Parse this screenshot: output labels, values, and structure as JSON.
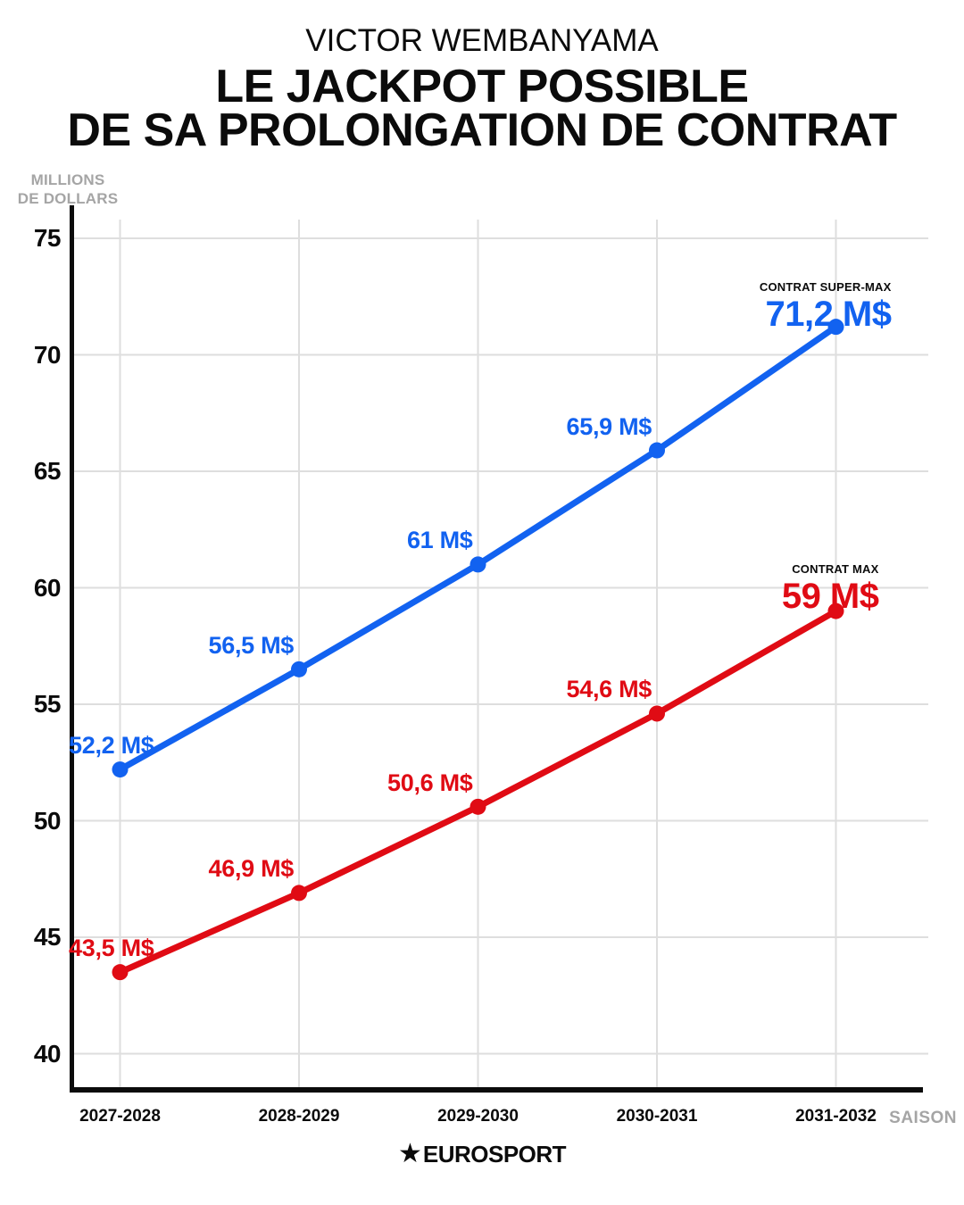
{
  "header": {
    "supertitle": "VICTOR WEMBANYAMA",
    "title_line1": "LE JACKPOT POSSIBLE",
    "title_line2": "DE SA PROLONGATION DE CONTRAT"
  },
  "y_axis_unit": {
    "line1": "MILLIONS",
    "line2": "DE DOLLARS"
  },
  "x_axis_title": "SAISON",
  "footer": {
    "star_icon": "★",
    "logo_text": "EUROSPORT"
  },
  "colors": {
    "super_max_blue": "#1262f0",
    "max_red": "#e00b14",
    "grid": "#dedede",
    "axis": "#0b0b0b",
    "muted_gray": "#a5a5a5"
  },
  "chart_data": {
    "type": "line",
    "title": "LE JACKPOT POSSIBLE DE SA PROLONGATION DE CONTRAT",
    "xlabel": "SAISON",
    "ylabel": "MILLIONS DE DOLLARS",
    "categories": [
      "2027-2028",
      "2028-2029",
      "2029-2030",
      "2030-2031",
      "2031-2032"
    ],
    "yticks": [
      75,
      70,
      65,
      60,
      55,
      50,
      45,
      40
    ],
    "ylim": [
      38.5,
      76.5
    ],
    "grid": true,
    "legend_position": "end-of-line",
    "series": [
      {
        "name": "CONTRAT SUPER-MAX",
        "color": "#1262f0",
        "values": [
          52.2,
          56.5,
          61,
          65.9,
          71.2
        ],
        "labels": [
          "52,2 M$",
          "56,5 M$",
          "61 M$",
          "65,9 M$",
          "71,2 M$"
        ]
      },
      {
        "name": "CONTRAT MAX",
        "color": "#e00b14",
        "values": [
          43.5,
          46.9,
          50.6,
          54.6,
          59
        ],
        "labels": [
          "43,5 M$",
          "46,9 M$",
          "50,6 M$",
          "54,6 M$",
          "59 M$"
        ]
      }
    ]
  }
}
